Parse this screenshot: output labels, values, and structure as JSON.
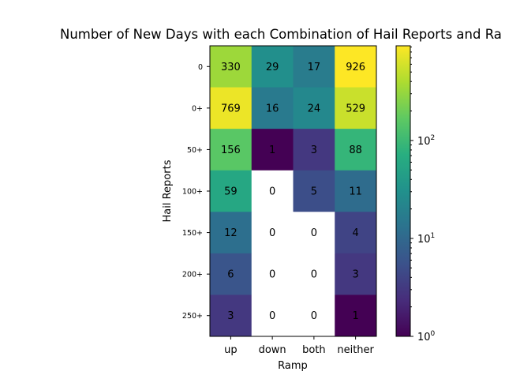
{
  "chart_data": {
    "type": "heatmap",
    "title": "Number of New Days with each Combination of Hail Reports and Ra",
    "xlabel": "Ramp",
    "ylabel": "Hail Reports",
    "x_categories": [
      "up",
      "down",
      "both",
      "neither"
    ],
    "y_categories": [
      "0",
      "0+",
      "50+",
      "100+",
      "150+",
      "200+",
      "250+"
    ],
    "values": [
      [
        330,
        29,
        17,
        926
      ],
      [
        769,
        16,
        24,
        529
      ],
      [
        156,
        1,
        3,
        88
      ],
      [
        59,
        0,
        5,
        11
      ],
      [
        12,
        0,
        0,
        4
      ],
      [
        6,
        0,
        0,
        3
      ],
      [
        3,
        0,
        0,
        1
      ]
    ],
    "color_scale": "log",
    "colormap": "viridis",
    "zero_color": "#ffffff",
    "colorbar": {
      "range": [
        1,
        926
      ],
      "tick_values": [
        1,
        10,
        100
      ],
      "tick_labels": [
        {
          "base": "10",
          "exp": "0"
        },
        {
          "base": "10",
          "exp": "1"
        },
        {
          "base": "10",
          "exp": "2"
        }
      ]
    }
  }
}
